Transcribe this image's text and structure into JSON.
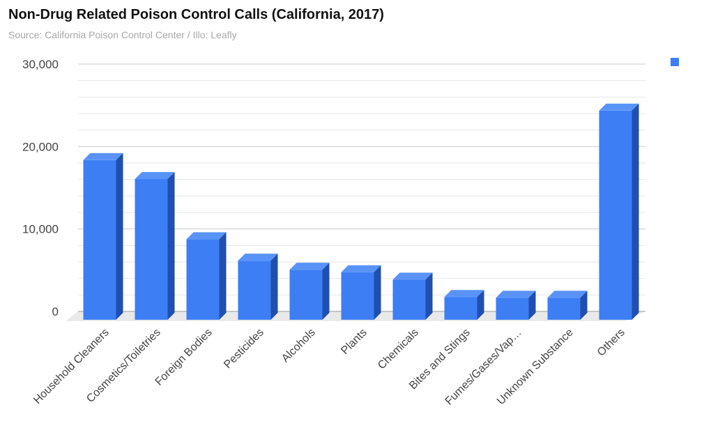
{
  "header": {
    "title": "Non-Drug Related Poison Control Calls (California, 2017)",
    "subtitle": "Source: California Poison Control Center / Illo: Leafly"
  },
  "colors": {
    "bar_front": "#3d7ef5",
    "bar_side": "#1f4fb0",
    "bar_top": "#5a93f7",
    "floor": "#e9e9e9",
    "grid_major": "#cccccc",
    "grid_minor": "#e6e6e6"
  },
  "chart_data": {
    "type": "bar",
    "title": "Non-Drug Related Poison Control Calls (California, 2017)",
    "xlabel": "",
    "ylabel": "",
    "ylim": [
      0,
      30000
    ],
    "yticks": [
      0,
      10000,
      20000,
      30000
    ],
    "ytick_labels": [
      "0",
      "10,000",
      "20,000",
      "30,000"
    ],
    "grid": true,
    "three_d": true,
    "legend": {
      "placement": "top-right",
      "label": ""
    },
    "categories": [
      "Household Cleaners",
      "Cosmetics/Toiletries",
      "Foreign Bodies",
      "Pesticides",
      "Alcohols",
      "Plants",
      "Chemicals",
      "Bites and Stings",
      "Fumes/Gases/Vap…",
      "Unknown Substance",
      "Others"
    ],
    "values": [
      19200,
      16900,
      9600,
      7000,
      5900,
      5600,
      4700,
      2600,
      2500,
      2500,
      25200
    ]
  }
}
